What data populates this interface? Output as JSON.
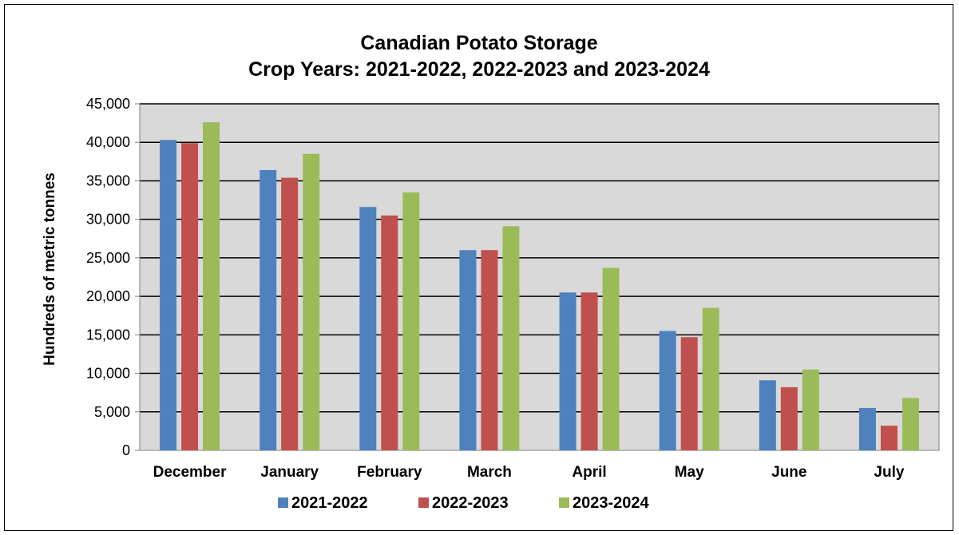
{
  "chart_data": {
    "type": "bar",
    "title": "Canadian Potato Storage",
    "subtitle": "Crop Years: 2021-2022, 2022-2023 and 2023-2024",
    "xlabel": "",
    "ylabel": "Hundreds of metric tonnes",
    "ylim": [
      0,
      45000
    ],
    "yticks": [
      0,
      5000,
      10000,
      15000,
      20000,
      25000,
      30000,
      35000,
      40000,
      45000
    ],
    "ytick_labels": [
      "0",
      "5,000",
      "10,000",
      "15,000",
      "20,000",
      "25,000",
      "30,000",
      "35,000",
      "40,000",
      "45,000"
    ],
    "grid": true,
    "legend_position": "bottom",
    "categories": [
      "December",
      "January",
      "February",
      "March",
      "April",
      "May",
      "June",
      "July"
    ],
    "series": [
      {
        "name": "2021-2022",
        "color": "#4F81BD",
        "values": [
          40300,
          36400,
          31600,
          26000,
          20500,
          15500,
          9100,
          5500
        ]
      },
      {
        "name": "2022-2023",
        "color": "#C0504D",
        "values": [
          39900,
          35400,
          30500,
          26000,
          20500,
          14700,
          8200,
          3200
        ]
      },
      {
        "name": "2023-2024",
        "color": "#9BBB59",
        "values": [
          42600,
          38500,
          33500,
          29100,
          23700,
          18500,
          10500,
          6800
        ]
      }
    ],
    "plot_background": "#D9D9D9"
  }
}
